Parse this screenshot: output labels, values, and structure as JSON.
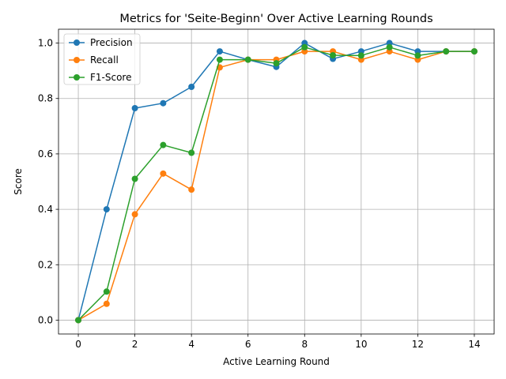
{
  "chart_data": {
    "type": "line",
    "title": "Metrics for 'Seite-Beginn' Over Active Learning Rounds",
    "xlabel": "Active Learning Round",
    "ylabel": "Score",
    "xlim": [
      -0.7,
      14.7
    ],
    "ylim": [
      -0.05,
      1.05
    ],
    "xticks": [
      0,
      2,
      4,
      6,
      8,
      10,
      12,
      14
    ],
    "yticks": [
      0.0,
      0.2,
      0.4,
      0.6,
      0.8,
      1.0
    ],
    "grid": true,
    "legend_position": "upper-left",
    "x": [
      0,
      1,
      2,
      3,
      4,
      5,
      6,
      7,
      8,
      9,
      10,
      11,
      12,
      13,
      14
    ],
    "series": [
      {
        "name": "Precision",
        "color": "#1f77b4",
        "values": [
          0.0,
          0.4,
          0.765,
          0.783,
          0.842,
          0.97,
          0.94,
          0.914,
          1.0,
          0.943,
          0.97,
          1.0,
          0.97,
          0.97,
          0.97
        ]
      },
      {
        "name": "Recall",
        "color": "#ff7f0e",
        "values": [
          0.0,
          0.059,
          0.382,
          0.529,
          0.471,
          0.912,
          0.94,
          0.94,
          0.97,
          0.97,
          0.94,
          0.97,
          0.94,
          0.97,
          0.97
        ]
      },
      {
        "name": "F1-Score",
        "color": "#2ca02c",
        "values": [
          0.0,
          0.103,
          0.51,
          0.632,
          0.604,
          0.94,
          0.94,
          0.927,
          0.985,
          0.956,
          0.955,
          0.985,
          0.955,
          0.97,
          0.97
        ]
      }
    ]
  }
}
